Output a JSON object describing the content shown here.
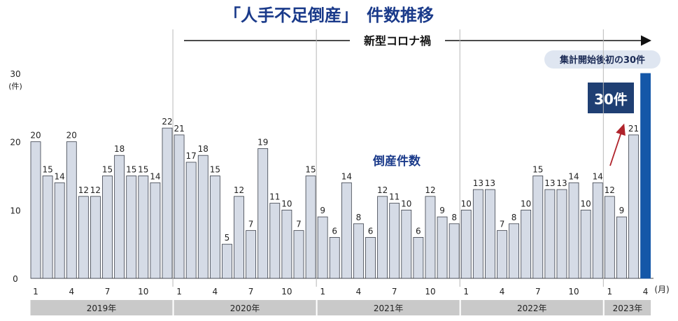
{
  "title": "「人手不足倒産」　件数推移",
  "covid_label": "新型コロナ禍",
  "series_label": "倒産件数",
  "callout_top": "集計開始後初の30件",
  "callout_box": "30件",
  "colors": {
    "bar": "#d5dbe6",
    "bar_stroke": "#3a3f4a",
    "highlight_bar": "#1457a8",
    "title": "#1a3a8a",
    "callout_box": "#1f3f73",
    "callout_pill": "#dfe6f1",
    "arrow": "#b0242c",
    "year_band": "#c9c9c9"
  },
  "chart_data": {
    "type": "bar",
    "title": "「人手不足倒産」　件数推移",
    "ylabel": "(件)",
    "xlabel": "(月)",
    "ylim": [
      0,
      30
    ],
    "yticks": [
      0,
      10,
      20,
      30
    ],
    "grid": false,
    "years": [
      {
        "label": "2019年",
        "months": [
          1,
          2,
          3,
          4,
          5,
          6,
          7,
          8,
          9,
          10,
          11,
          12
        ],
        "values": [
          20,
          15,
          14,
          20,
          12,
          12,
          15,
          18,
          15,
          15,
          14,
          22
        ]
      },
      {
        "label": "2020年",
        "months": [
          1,
          2,
          3,
          4,
          5,
          6,
          7,
          8,
          9,
          10,
          11,
          12
        ],
        "values": [
          21,
          17,
          18,
          15,
          5,
          12,
          7,
          19,
          11,
          10,
          7,
          15
        ]
      },
      {
        "label": "2021年",
        "months": [
          1,
          2,
          3,
          4,
          5,
          6,
          7,
          8,
          9,
          10,
          11,
          12
        ],
        "values": [
          9,
          6,
          14,
          8,
          6,
          12,
          11,
          10,
          6,
          12,
          9,
          8
        ]
      },
      {
        "label": "2022年",
        "months": [
          1,
          2,
          3,
          4,
          5,
          6,
          7,
          8,
          9,
          10,
          11,
          12
        ],
        "values": [
          10,
          13,
          13,
          7,
          8,
          10,
          15,
          13,
          13,
          14,
          10,
          14
        ]
      },
      {
        "label": "2023年",
        "months": [
          1,
          2,
          3,
          4
        ],
        "values": [
          12,
          9,
          21,
          30
        ]
      }
    ],
    "x_tick_labels": [
      "1",
      "4",
      "7",
      "10"
    ],
    "highlight": {
      "year": "2023年",
      "month": 4,
      "value": 30
    }
  }
}
